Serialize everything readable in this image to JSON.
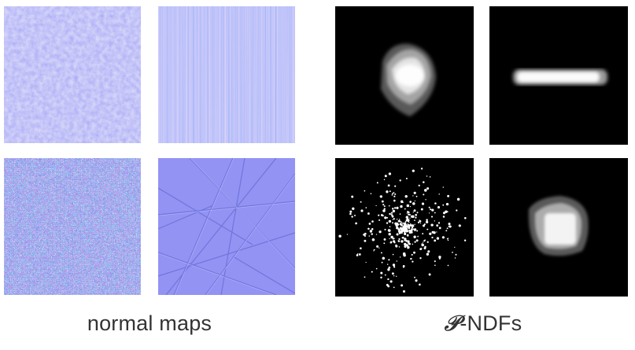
{
  "figure": {
    "left_group": {
      "caption": "normal maps",
      "panels": [
        {
          "name": "normal-map-bumpy"
        },
        {
          "name": "normal-map-vertical-stripes"
        },
        {
          "name": "normal-map-noisy"
        },
        {
          "name": "normal-map-scratches"
        }
      ],
      "colors": {
        "base": "#8c8cf2",
        "highlight": "#a9a6ff",
        "shadow": "#6f73d9"
      }
    },
    "right_group": {
      "caption_symbol": "𝒫",
      "caption_text": "-NDFs",
      "panels": [
        {
          "name": "ndf-blob"
        },
        {
          "name": "ndf-horizontal-streak"
        },
        {
          "name": "ndf-scattered-dots"
        },
        {
          "name": "ndf-box-blob"
        }
      ],
      "colors": {
        "background": "#000000",
        "foreground": "#ffffff"
      }
    }
  }
}
